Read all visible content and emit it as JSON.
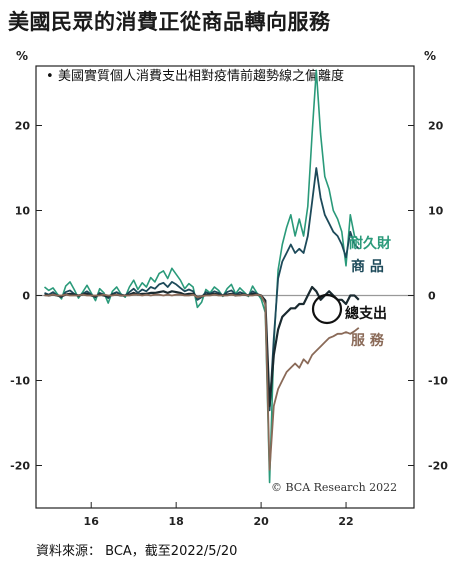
{
  "title": "美國民眾的消費正從商品轉向服務",
  "source": "資料來源： BCA，截至2022/5/20",
  "chart_data": {
    "type": "line",
    "subtitle": "美國實質個人消費支出相對疫情前趨勢線之偏離度",
    "ylabel_left": "%",
    "ylabel_right": "%",
    "ylim": [
      -25,
      27
    ],
    "yticks": [
      20,
      10,
      0,
      -10,
      -20
    ],
    "ytick_labels": [
      "20",
      "10",
      "0",
      "-10",
      "-20"
    ],
    "xlim": [
      2014.7,
      2023.6
    ],
    "xticks": [
      2016,
      2018,
      2020,
      2022
    ],
    "xtick_labels": [
      "16",
      "18",
      "20",
      "22"
    ],
    "grid": false,
    "zero_line": true,
    "credit": "© BCA Research 2022",
    "series": [
      {
        "name": "耐久財",
        "color": "#2a9a7a",
        "x": [
          2014.9,
          2015.0,
          2015.1,
          2015.2,
          2015.3,
          2015.4,
          2015.5,
          2015.6,
          2015.7,
          2015.8,
          2015.9,
          2016.0,
          2016.1,
          2016.2,
          2016.3,
          2016.4,
          2016.5,
          2016.6,
          2016.7,
          2016.8,
          2016.9,
          2017.0,
          2017.1,
          2017.2,
          2017.3,
          2017.4,
          2017.5,
          2017.6,
          2017.7,
          2017.8,
          2017.9,
          2018.0,
          2018.1,
          2018.2,
          2018.3,
          2018.4,
          2018.5,
          2018.6,
          2018.7,
          2018.8,
          2018.9,
          2019.0,
          2019.1,
          2019.2,
          2019.3,
          2019.4,
          2019.5,
          2019.6,
          2019.7,
          2019.8,
          2019.9,
          2020.0,
          2020.1,
          2020.2,
          2020.3,
          2020.4,
          2020.5,
          2020.6,
          2020.7,
          2020.8,
          2020.9,
          2021.0,
          2021.1,
          2021.2,
          2021.3,
          2021.4,
          2021.5,
          2021.6,
          2021.7,
          2021.8,
          2021.9,
          2022.0,
          2022.1,
          2022.2,
          2022.3
        ],
        "values": [
          1.0,
          0.6,
          0.9,
          0.2,
          -0.4,
          1.1,
          1.6,
          0.7,
          -0.3,
          0.4,
          1.2,
          0.3,
          -0.6,
          0.8,
          0.3,
          -0.9,
          0.5,
          1.0,
          0.2,
          -0.2,
          1.0,
          1.8,
          0.7,
          1.5,
          1.0,
          2.1,
          1.6,
          2.6,
          2.9,
          2.0,
          3.2,
          2.5,
          1.8,
          0.8,
          1.4,
          1.0,
          -1.4,
          -0.8,
          0.7,
          0.3,
          1.0,
          0.6,
          -0.1,
          0.8,
          1.3,
          0.2,
          0.9,
          0.4,
          -0.1,
          1.1,
          0.3,
          -0.4,
          -2.0,
          -22.0,
          -6.0,
          3.0,
          6.0,
          8.0,
          9.5,
          7.0,
          9.0,
          7.0,
          10.5,
          19.0,
          26.5,
          19.0,
          14.0,
          12.5,
          10.0,
          9.0,
          7.5,
          3.5,
          9.5,
          7.0,
          6.5
        ]
      },
      {
        "name": "商品",
        "color": "#1d4a5a",
        "x": [
          2014.9,
          2015.0,
          2015.1,
          2015.2,
          2015.3,
          2015.4,
          2015.5,
          2015.6,
          2015.7,
          2015.8,
          2015.9,
          2016.0,
          2016.1,
          2016.2,
          2016.3,
          2016.4,
          2016.5,
          2016.6,
          2016.7,
          2016.8,
          2016.9,
          2017.0,
          2017.1,
          2017.2,
          2017.3,
          2017.4,
          2017.5,
          2017.6,
          2017.7,
          2017.8,
          2017.9,
          2018.0,
          2018.1,
          2018.2,
          2018.3,
          2018.4,
          2018.5,
          2018.6,
          2018.7,
          2018.8,
          2018.9,
          2019.0,
          2019.1,
          2019.2,
          2019.3,
          2019.4,
          2019.5,
          2019.6,
          2019.7,
          2019.8,
          2019.9,
          2020.0,
          2020.1,
          2020.2,
          2020.3,
          2020.4,
          2020.5,
          2020.6,
          2020.7,
          2020.8,
          2020.9,
          2021.0,
          2021.1,
          2021.2,
          2021.3,
          2021.4,
          2021.5,
          2021.6,
          2021.7,
          2021.8,
          2021.9,
          2022.0,
          2022.1,
          2022.2,
          2022.3
        ],
        "values": [
          0.3,
          0.1,
          0.4,
          0.0,
          -0.2,
          0.4,
          0.6,
          0.2,
          -0.1,
          0.2,
          0.5,
          0.1,
          -0.2,
          0.3,
          0.1,
          -0.3,
          0.2,
          0.4,
          0.1,
          0.0,
          0.4,
          0.8,
          0.3,
          0.7,
          0.5,
          1.0,
          0.8,
          1.3,
          1.5,
          1.0,
          1.6,
          1.3,
          0.9,
          0.5,
          0.7,
          0.5,
          -0.5,
          -0.2,
          0.4,
          0.2,
          0.5,
          0.3,
          0.0,
          0.4,
          0.6,
          0.1,
          0.4,
          0.2,
          0.0,
          0.5,
          0.2,
          0.0,
          -1.0,
          -13.5,
          -5.0,
          2.0,
          4.0,
          5.0,
          6.0,
          5.0,
          5.5,
          5.0,
          7.0,
          11.0,
          15.0,
          11.5,
          9.5,
          8.5,
          7.5,
          7.0,
          6.0,
          4.5,
          7.5,
          6.0,
          5.5
        ]
      },
      {
        "name": "總支出",
        "color": "#1a2a30",
        "x": [
          2014.9,
          2015.0,
          2015.1,
          2015.2,
          2015.3,
          2015.4,
          2015.5,
          2015.6,
          2015.7,
          2015.8,
          2015.9,
          2016.0,
          2016.1,
          2016.2,
          2016.3,
          2016.4,
          2016.5,
          2016.6,
          2016.7,
          2016.8,
          2016.9,
          2017.0,
          2017.1,
          2017.2,
          2017.3,
          2017.4,
          2017.5,
          2017.6,
          2017.7,
          2017.8,
          2017.9,
          2018.0,
          2018.1,
          2018.2,
          2018.3,
          2018.4,
          2018.5,
          2018.6,
          2018.7,
          2018.8,
          2018.9,
          2019.0,
          2019.1,
          2019.2,
          2019.3,
          2019.4,
          2019.5,
          2019.6,
          2019.7,
          2019.8,
          2019.9,
          2020.0,
          2020.1,
          2020.2,
          2020.3,
          2020.4,
          2020.5,
          2020.6,
          2020.7,
          2020.8,
          2020.9,
          2021.0,
          2021.1,
          2021.2,
          2021.3,
          2021.4,
          2021.5,
          2021.6,
          2021.7,
          2021.8,
          2021.9,
          2022.0,
          2022.1,
          2022.2,
          2022.3
        ],
        "values": [
          0.1,
          0.0,
          0.1,
          0.0,
          -0.1,
          0.1,
          0.2,
          0.1,
          0.0,
          0.1,
          0.2,
          0.0,
          -0.1,
          0.1,
          0.0,
          -0.1,
          0.1,
          0.1,
          0.0,
          0.0,
          0.1,
          0.3,
          0.1,
          0.2,
          0.2,
          0.3,
          0.3,
          0.4,
          0.5,
          0.3,
          0.5,
          0.4,
          0.3,
          0.1,
          0.2,
          0.2,
          -0.2,
          -0.1,
          0.1,
          0.1,
          0.2,
          0.1,
          0.0,
          0.1,
          0.2,
          0.0,
          0.1,
          0.1,
          0.0,
          0.2,
          0.1,
          0.0,
          -0.6,
          -13.0,
          -7.0,
          -4.0,
          -2.5,
          -2.0,
          -1.5,
          -1.5,
          -1.0,
          -1.0,
          0.0,
          1.0,
          0.5,
          -0.5,
          0.0,
          0.5,
          0.0,
          -0.5,
          -0.5,
          -1.0,
          0.0,
          0.0,
          -0.5
        ]
      },
      {
        "name": "服務",
        "color": "#8a6a58",
        "x": [
          2014.9,
          2015.0,
          2015.1,
          2015.2,
          2015.3,
          2015.4,
          2015.5,
          2015.6,
          2015.7,
          2015.8,
          2015.9,
          2016.0,
          2016.1,
          2016.2,
          2016.3,
          2016.4,
          2016.5,
          2016.6,
          2016.7,
          2016.8,
          2016.9,
          2017.0,
          2017.1,
          2017.2,
          2017.3,
          2017.4,
          2017.5,
          2017.6,
          2017.7,
          2017.8,
          2017.9,
          2018.0,
          2018.1,
          2018.2,
          2018.3,
          2018.4,
          2018.5,
          2018.6,
          2018.7,
          2018.8,
          2018.9,
          2019.0,
          2019.1,
          2019.2,
          2019.3,
          2019.4,
          2019.5,
          2019.6,
          2019.7,
          2019.8,
          2019.9,
          2020.0,
          2020.1,
          2020.2,
          2020.3,
          2020.4,
          2020.5,
          2020.6,
          2020.7,
          2020.8,
          2020.9,
          2021.0,
          2021.1,
          2021.2,
          2021.3,
          2021.4,
          2021.5,
          2021.6,
          2021.7,
          2021.8,
          2021.9,
          2022.0,
          2022.1,
          2022.2,
          2022.3
        ],
        "values": [
          0.0,
          0.0,
          0.1,
          0.0,
          0.0,
          0.1,
          0.0,
          0.0,
          0.0,
          0.1,
          0.0,
          0.0,
          0.0,
          0.0,
          0.1,
          0.0,
          0.0,
          0.1,
          0.0,
          0.0,
          0.0,
          0.1,
          0.1,
          0.0,
          0.1,
          0.0,
          0.1,
          0.1,
          0.0,
          0.1,
          0.0,
          0.1,
          0.1,
          0.0,
          0.0,
          0.1,
          -0.2,
          -0.1,
          0.0,
          0.0,
          0.1,
          0.0,
          0.0,
          0.0,
          0.1,
          0.0,
          0.0,
          0.1,
          0.0,
          0.0,
          0.1,
          0.0,
          -1.0,
          -20.5,
          -13.0,
          -11.0,
          -10.0,
          -9.0,
          -8.5,
          -8.0,
          -8.5,
          -7.5,
          -8.0,
          -7.0,
          -6.5,
          -6.0,
          -5.5,
          -5.0,
          -4.8,
          -4.5,
          -4.5,
          -4.3,
          -4.5,
          -4.2,
          -3.8
        ]
      }
    ],
    "labels": [
      {
        "text": "耐久財",
        "series": "耐久財"
      },
      {
        "text": "商 品",
        "series": "商品"
      },
      {
        "text": "總支出",
        "series": "總支出"
      },
      {
        "text": "服 務",
        "series": "服務"
      }
    ]
  }
}
